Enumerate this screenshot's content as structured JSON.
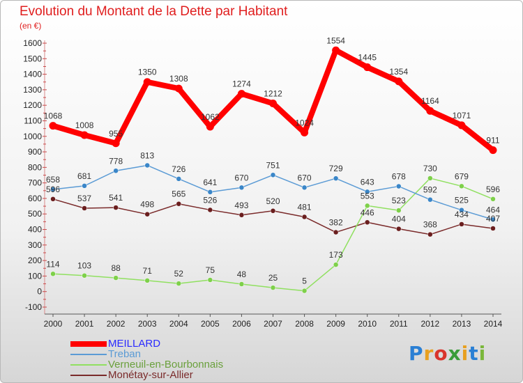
{
  "header": {
    "title": "Evolution du Montant de la Dette par Habitant",
    "subtitle": "(en €)"
  },
  "logo": {
    "text": "Proxiti",
    "colors": [
      "#2a7fd4",
      "#e8a020",
      "#d9342b",
      "#3a9c3a",
      "#e8a020",
      "#2a7fd4",
      "#7ab73a"
    ]
  },
  "chart_data": {
    "type": "line",
    "title": "Evolution du Montant de la Dette par Habitant",
    "ylabel": "(en €)",
    "x": [
      "2000",
      "2001",
      "2002",
      "2003",
      "2004",
      "2005",
      "2006",
      "2007",
      "2008",
      "2009",
      "2010",
      "2011",
      "2012",
      "2013",
      "2014"
    ],
    "ylim": [
      -100,
      1600
    ],
    "yticks": [
      -100,
      0,
      100,
      200,
      300,
      400,
      500,
      600,
      700,
      800,
      900,
      1000,
      1100,
      1200,
      1300,
      1400,
      1500,
      1600
    ],
    "grid": false,
    "legend": "bottom-left",
    "series": [
      {
        "name": "MEILLARD",
        "color": "#ff0000",
        "values": [
          1068,
          1008,
          955,
          1350,
          1308,
          1062,
          1274,
          1212,
          1024,
          1554,
          1445,
          1354,
          1164,
          1071,
          911
        ]
      },
      {
        "name": "Treban",
        "color": "#5b9bd5",
        "values": [
          658,
          681,
          778,
          813,
          726,
          641,
          670,
          751,
          670,
          729,
          643,
          678,
          592,
          525,
          464
        ]
      },
      {
        "name": "Verneuil-en-Bourbonnais",
        "color": "#90e060",
        "values": [
          114,
          103,
          88,
          71,
          52,
          75,
          48,
          25,
          5,
          173,
          553,
          523,
          730,
          679,
          596
        ]
      },
      {
        "name": "Monétay-sur-Allier",
        "color": "#7a2a2a",
        "values": [
          596,
          537,
          541,
          498,
          565,
          526,
          493,
          520,
          481,
          382,
          446,
          404,
          368,
          434,
          407
        ]
      }
    ]
  }
}
